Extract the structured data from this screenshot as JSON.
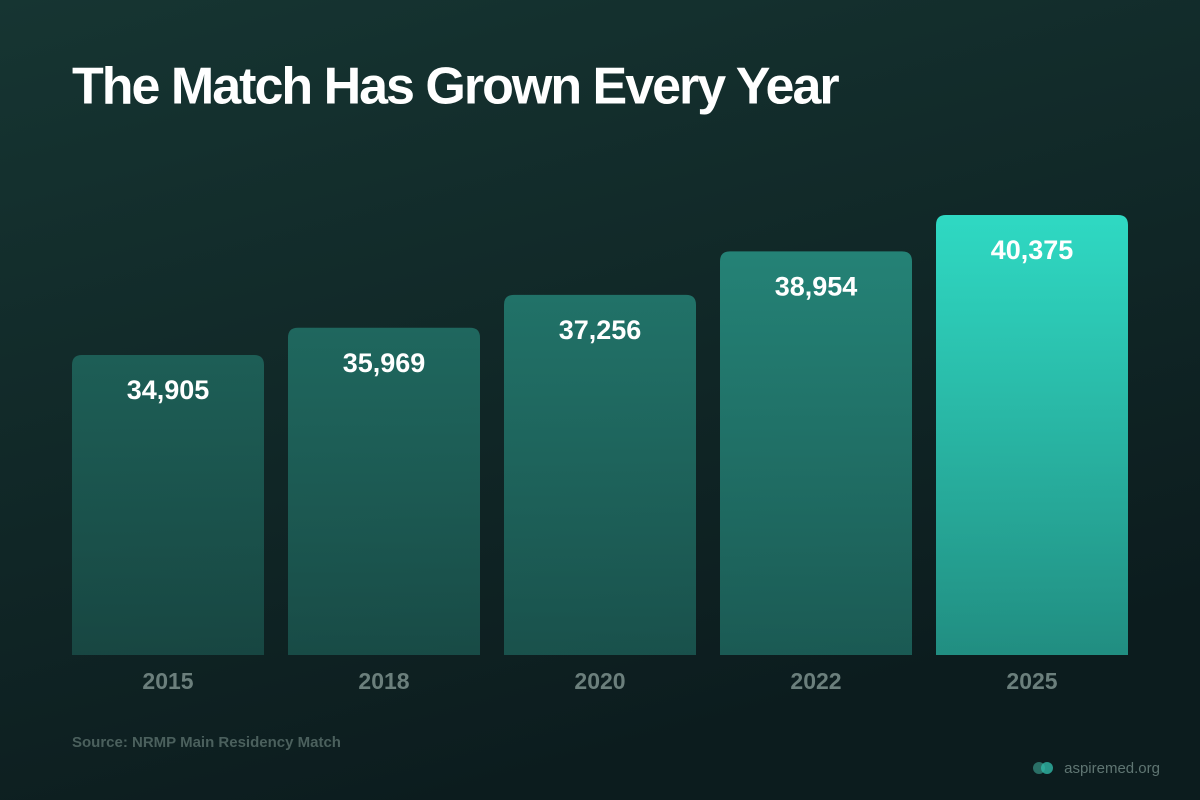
{
  "chart_data": {
    "type": "bar",
    "title": "The Match Has Grown Every Year",
    "categories": [
      "2015",
      "2018",
      "2020",
      "2022",
      "2025"
    ],
    "values": [
      34905,
      35969,
      37256,
      38954,
      40375
    ],
    "value_labels": [
      "34,905",
      "35,969",
      "37,256",
      "38,954",
      "40,375"
    ],
    "colors": [
      "#1d5e56",
      "#1f675e",
      "#217268",
      "#248276",
      "#2fd9c3"
    ],
    "source": "Source: NRMP Main Residency Match",
    "credit": "aspiremed.org"
  }
}
